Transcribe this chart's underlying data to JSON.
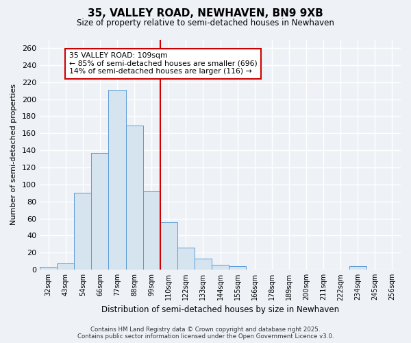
{
  "title": "35, VALLEY ROAD, NEWHAVEN, BN9 9XB",
  "subtitle": "Size of property relative to semi-detached houses in Newhaven",
  "xlabel": "Distribution of semi-detached houses by size in Newhaven",
  "ylabel": "Number of semi-detached properties",
  "bin_labels": [
    "32sqm",
    "43sqm",
    "54sqm",
    "66sqm",
    "77sqm",
    "88sqm",
    "99sqm",
    "110sqm",
    "122sqm",
    "133sqm",
    "144sqm",
    "155sqm",
    "166sqm",
    "178sqm",
    "189sqm",
    "200sqm",
    "211sqm",
    "222sqm",
    "234sqm",
    "245sqm",
    "256sqm"
  ],
  "bar_values": [
    3,
    7,
    90,
    137,
    211,
    169,
    92,
    56,
    26,
    13,
    6,
    4,
    0,
    0,
    0,
    0,
    0,
    0,
    4,
    0,
    0
  ],
  "bar_color": "#d6e4f0",
  "bar_edge_color": "#5b9bd5",
  "vline_x": 7.0,
  "vline_color": "#cc0000",
  "annotation_text": "35 VALLEY ROAD: 109sqm\n← 85% of semi-detached houses are smaller (696)\n14% of semi-detached houses are larger (116) →",
  "annotation_box_color": "#ffffff",
  "annotation_box_edge": "#cc0000",
  "ylim": [
    0,
    270
  ],
  "yticks": [
    0,
    20,
    40,
    60,
    80,
    100,
    120,
    140,
    160,
    180,
    200,
    220,
    240,
    260
  ],
  "background_color": "#eef2f7",
  "grid_color": "#ffffff",
  "footer_line1": "Contains HM Land Registry data © Crown copyright and database right 2025.",
  "footer_line2": "Contains public sector information licensed under the Open Government Licence v3.0."
}
